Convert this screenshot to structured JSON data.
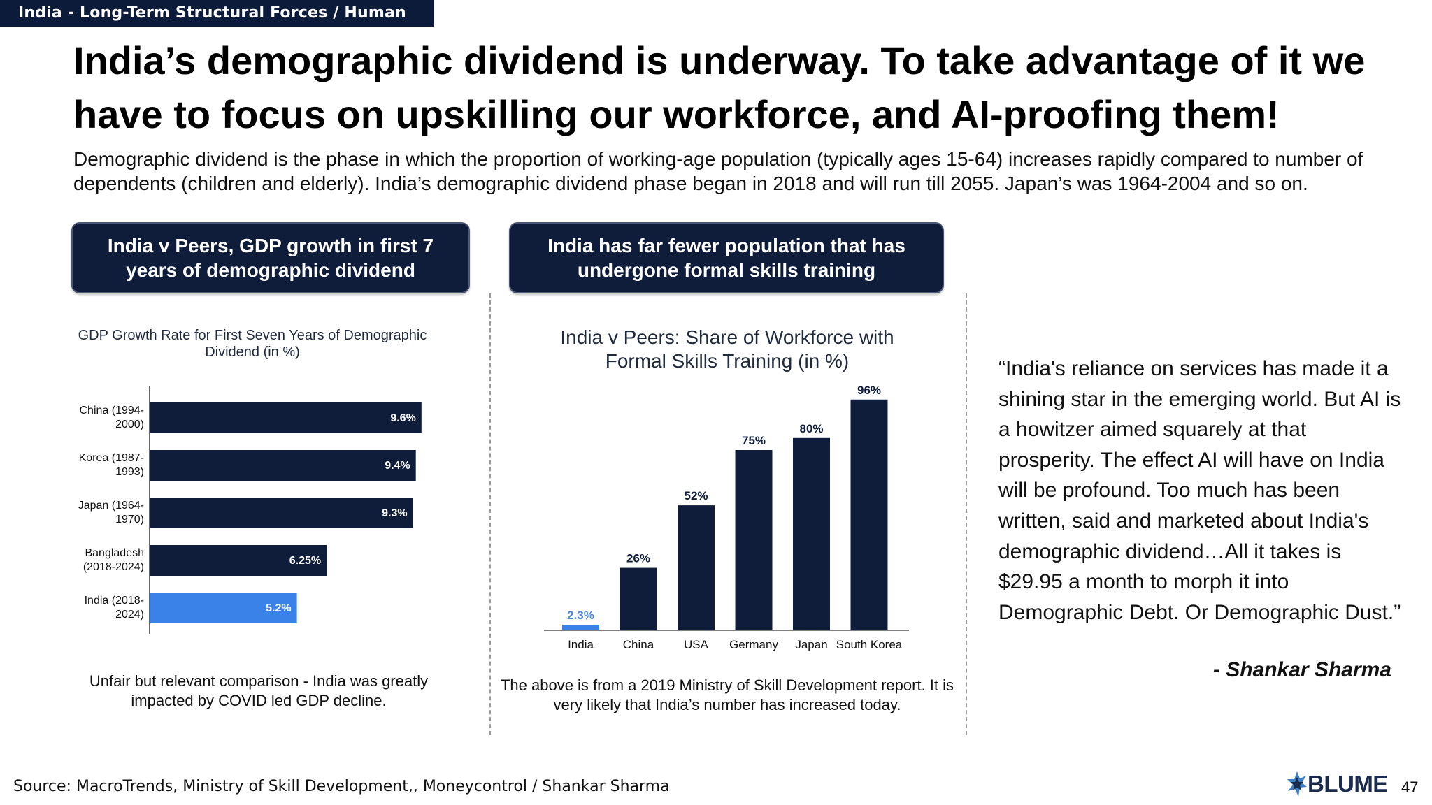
{
  "section_tag": "India - Long-Term Structural Forces / Human Capital",
  "headline": "India’s demographic dividend is underway. To take advantage of it we have to focus on upskilling our workforce, and AI-proofing them!",
  "subtext": "Demographic dividend is the phase in which the proportion of working-age population (typically ages 15-64) increases rapidly compared to number of dependents (children and elderly). India’s demographic dividend phase began in 2018 and will run till 2055. Japan’s was 1964-2004 and so on.",
  "panel_left": {
    "header": "India v Peers, GDP growth in first 7 years of demographic dividend",
    "caption": "Unfair but relevant comparison - India was greatly impacted by COVID led GDP decline."
  },
  "panel_middle": {
    "header": "India has far fewer population that has undergone formal skills training",
    "caption": "The above is from a 2019 Ministry of Skill Development report. It is very likely that India’s number has increased today."
  },
  "quote": {
    "text": "“India's reliance on services has made it a shining star in the emerging world. But AI is a howitzer aimed squarely at that prosperity. The effect AI will have on India will be profound. Too much has been written, said and marketed about India's demographic dividend…All it takes is $29.95 a month to morph it into Demographic Debt. Or Demographic Dust.”",
    "author": "- Shankar Sharma"
  },
  "source": "Source: MacroTrends, Ministry of Skill Development,, Moneycontrol / Shankar Sharma",
  "brand": "BLUME",
  "page_number": "47",
  "colors": {
    "navy": "#0f1d3a",
    "highlight_blue": "#3b82e8",
    "label_blue": "#4f86e0"
  },
  "icons": [
    "blume-logo-icon"
  ],
  "chart_data": [
    {
      "type": "bar",
      "orientation": "horizontal",
      "title": "GDP Growth Rate for First Seven Years of Demographic Dividend (in %)",
      "categories": [
        [
          "China (1994-",
          "2000)"
        ],
        [
          "Korea (1987-",
          "1993)"
        ],
        [
          "Japan (1964-",
          "1970)"
        ],
        [
          "Bangladesh",
          "(2018-2024)"
        ],
        [
          "India (2018-",
          "2024)"
        ]
      ],
      "values": [
        9.6,
        9.4,
        9.3,
        6.25,
        5.2
      ],
      "value_labels": [
        "9.6%",
        "9.4%",
        "9.3%",
        "6.25%",
        "5.2%"
      ],
      "highlight_index": 4,
      "xlim": [
        0,
        10
      ],
      "grid": false,
      "legend": "none"
    },
    {
      "type": "bar",
      "orientation": "vertical",
      "title": "India v Peers: Share of Workforce with Formal Skills Training (in %)",
      "categories": [
        "India",
        "China",
        "USA",
        "Germany",
        "Japan",
        "South Korea"
      ],
      "values": [
        2.3,
        26,
        52,
        75,
        80,
        96
      ],
      "value_labels": [
        "2.3%",
        "26%",
        "52%",
        "75%",
        "80%",
        "96%"
      ],
      "highlight_index": 0,
      "ylim": [
        0,
        100
      ],
      "grid": false,
      "legend": "none"
    }
  ]
}
